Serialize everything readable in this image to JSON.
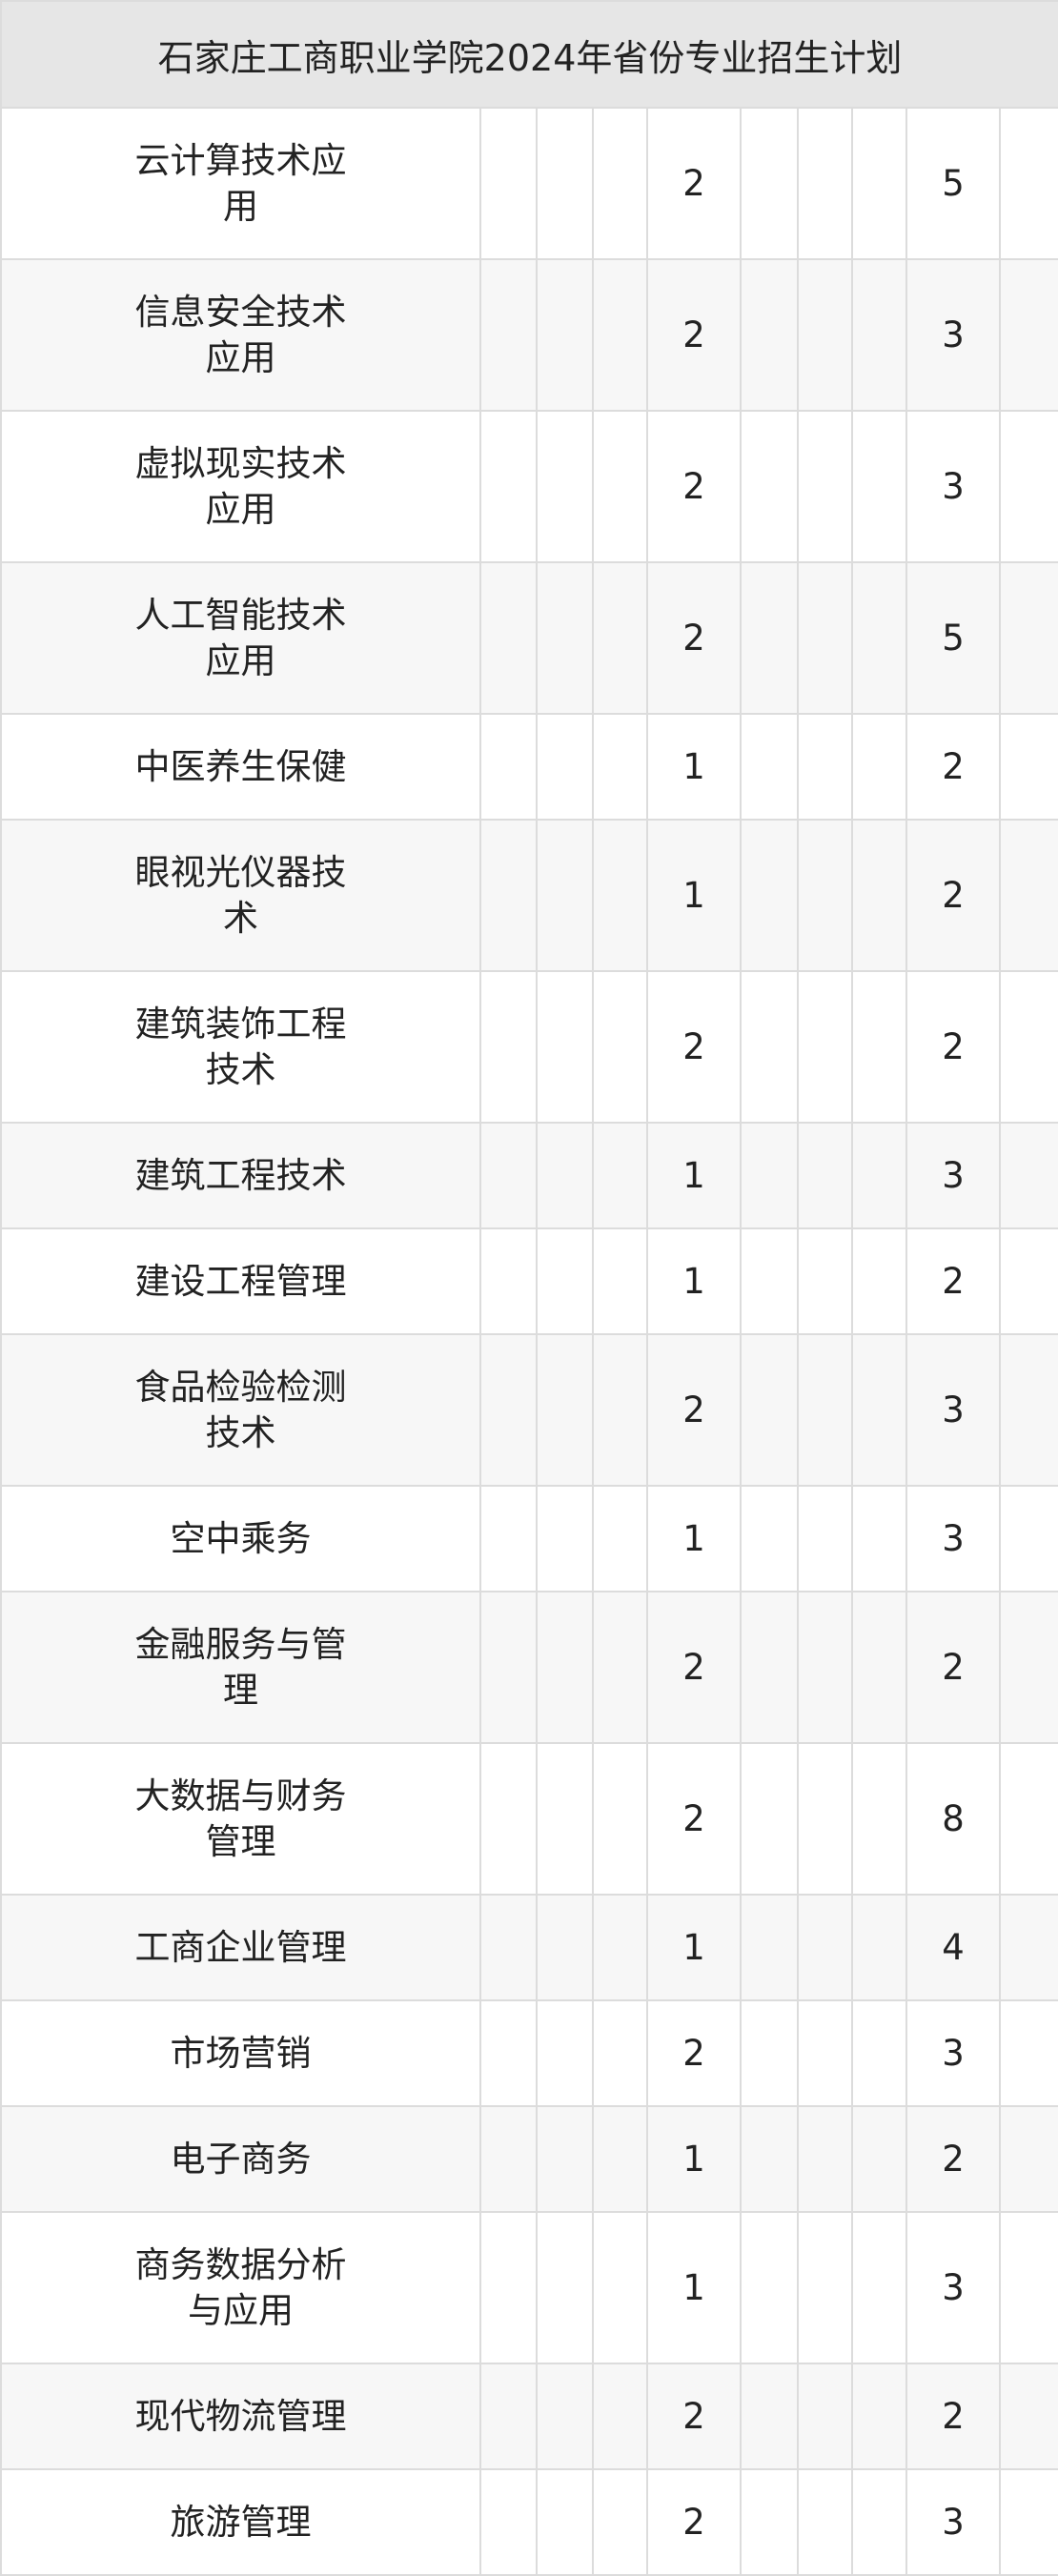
{
  "table": {
    "title": "石家庄工商职业学院2024年省份专业招生计划",
    "rows": [
      {
        "name": "云计算技术应用",
        "lines": [
          "云计算技术应",
          "用"
        ],
        "a": "2",
        "b": "5"
      },
      {
        "name": "信息安全技术应用",
        "lines": [
          "信息安全技术",
          "应用"
        ],
        "a": "2",
        "b": "3"
      },
      {
        "name": "虚拟现实技术应用",
        "lines": [
          "虚拟现实技术",
          "应用"
        ],
        "a": "2",
        "b": "3"
      },
      {
        "name": "人工智能技术应用",
        "lines": [
          "人工智能技术",
          "应用"
        ],
        "a": "2",
        "b": "5"
      },
      {
        "name": "中医养生保健",
        "lines": [
          "中医养生保健"
        ],
        "a": "1",
        "b": "2"
      },
      {
        "name": "眼视光仪器技术",
        "lines": [
          "眼视光仪器技",
          "术"
        ],
        "a": "1",
        "b": "2"
      },
      {
        "name": "建筑装饰工程技术",
        "lines": [
          "建筑装饰工程",
          "技术"
        ],
        "a": "2",
        "b": "2"
      },
      {
        "name": "建筑工程技术",
        "lines": [
          "建筑工程技术"
        ],
        "a": "1",
        "b": "3"
      },
      {
        "name": "建设工程管理",
        "lines": [
          "建设工程管理"
        ],
        "a": "1",
        "b": "2"
      },
      {
        "name": "食品检验检测技术",
        "lines": [
          "食品检验检测",
          "技术"
        ],
        "a": "2",
        "b": "3"
      },
      {
        "name": "空中乘务",
        "lines": [
          "空中乘务"
        ],
        "a": "1",
        "b": "3"
      },
      {
        "name": "金融服务与管理",
        "lines": [
          "金融服务与管",
          "理"
        ],
        "a": "2",
        "b": "2"
      },
      {
        "name": "大数据与财务管理",
        "lines": [
          "大数据与财务",
          "管理"
        ],
        "a": "2",
        "b": "8"
      },
      {
        "name": "工商企业管理",
        "lines": [
          "工商企业管理"
        ],
        "a": "1",
        "b": "4"
      },
      {
        "name": "市场营销",
        "lines": [
          "市场营销"
        ],
        "a": "2",
        "b": "3"
      },
      {
        "name": "电子商务",
        "lines": [
          "电子商务"
        ],
        "a": "1",
        "b": "2"
      },
      {
        "name": "商务数据分析与应用",
        "lines": [
          "商务数据分析",
          "与应用"
        ],
        "a": "1",
        "b": "3"
      },
      {
        "name": "现代物流管理",
        "lines": [
          "现代物流管理"
        ],
        "a": "2",
        "b": "2"
      },
      {
        "name": "旅游管理",
        "lines": [
          "旅游管理"
        ],
        "a": "2",
        "b": "3"
      }
    ]
  }
}
